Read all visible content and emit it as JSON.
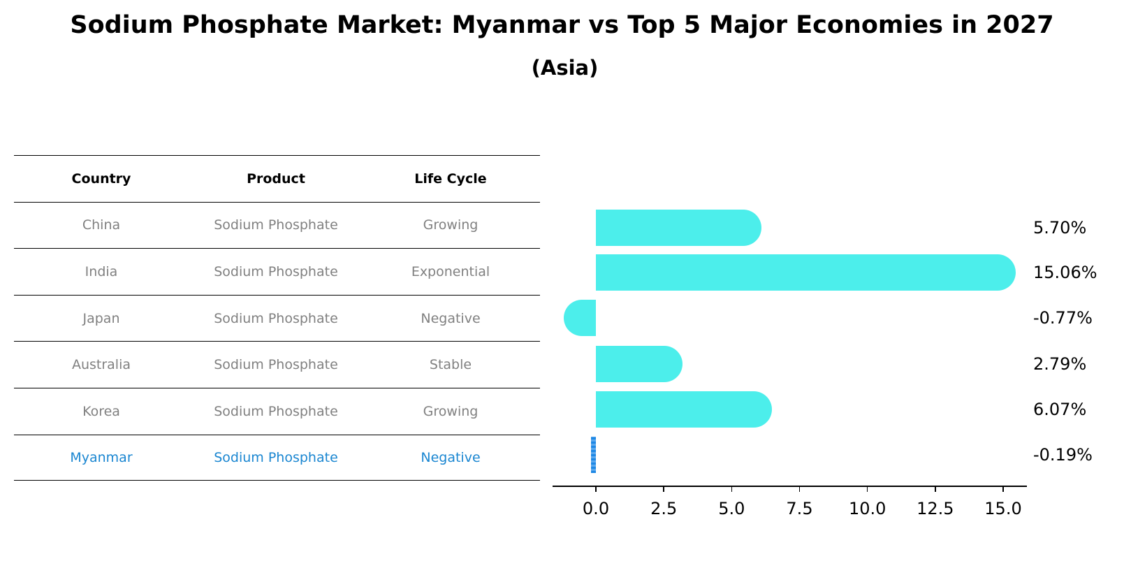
{
  "title": "Sodium Phosphate Market: Myanmar vs Top 5 Major Economies in 2027",
  "subtitle": "(Asia)",
  "table": {
    "headers": [
      "Country",
      "Product",
      "Life Cycle"
    ],
    "rows": [
      [
        "China",
        "Sodium Phosphate",
        "Growing"
      ],
      [
        "India",
        "Sodium Phosphate",
        "Exponential"
      ],
      [
        "Japan",
        "Sodium Phosphate",
        "Negative"
      ],
      [
        "Australia",
        "Sodium Phosphate",
        "Stable"
      ],
      [
        "Korea",
        "Sodium Phosphate",
        "Growing"
      ],
      [
        "Myanmar",
        "Sodium Phosphate",
        "Negative"
      ]
    ],
    "highlight_row": 5,
    "highlight_color": "#1a86d1",
    "text_color": "#808080"
  },
  "chart_data": {
    "type": "bar",
    "orientation": "horizontal",
    "title": "Sodium Phosphate Market: Myanmar vs Top 5 Major Economies in 2027",
    "subtitle": "(Asia)",
    "categories": [
      "China",
      "India",
      "Japan",
      "Australia",
      "Korea",
      "Myanmar"
    ],
    "values": [
      5.7,
      15.06,
      -0.77,
      2.79,
      6.07,
      -0.19
    ],
    "value_labels": [
      "5.70%",
      "15.06%",
      "-0.77%",
      "2.79%",
      "6.07%",
      "-0.19%"
    ],
    "xlabel": "",
    "ylabel": "",
    "xticks": [
      "0.0",
      "2.5",
      "5.0",
      "7.5",
      "10.0",
      "12.5",
      "15.0"
    ],
    "xtick_values": [
      0,
      2.5,
      5,
      7.5,
      10,
      12.5,
      15
    ],
    "xlim": [
      -1.6,
      15.9
    ],
    "grid": false,
    "legend": null,
    "colors": {
      "bar": "#4ceeeb",
      "highlight": "#1e88e5"
    },
    "highlight_category": "Myanmar"
  }
}
